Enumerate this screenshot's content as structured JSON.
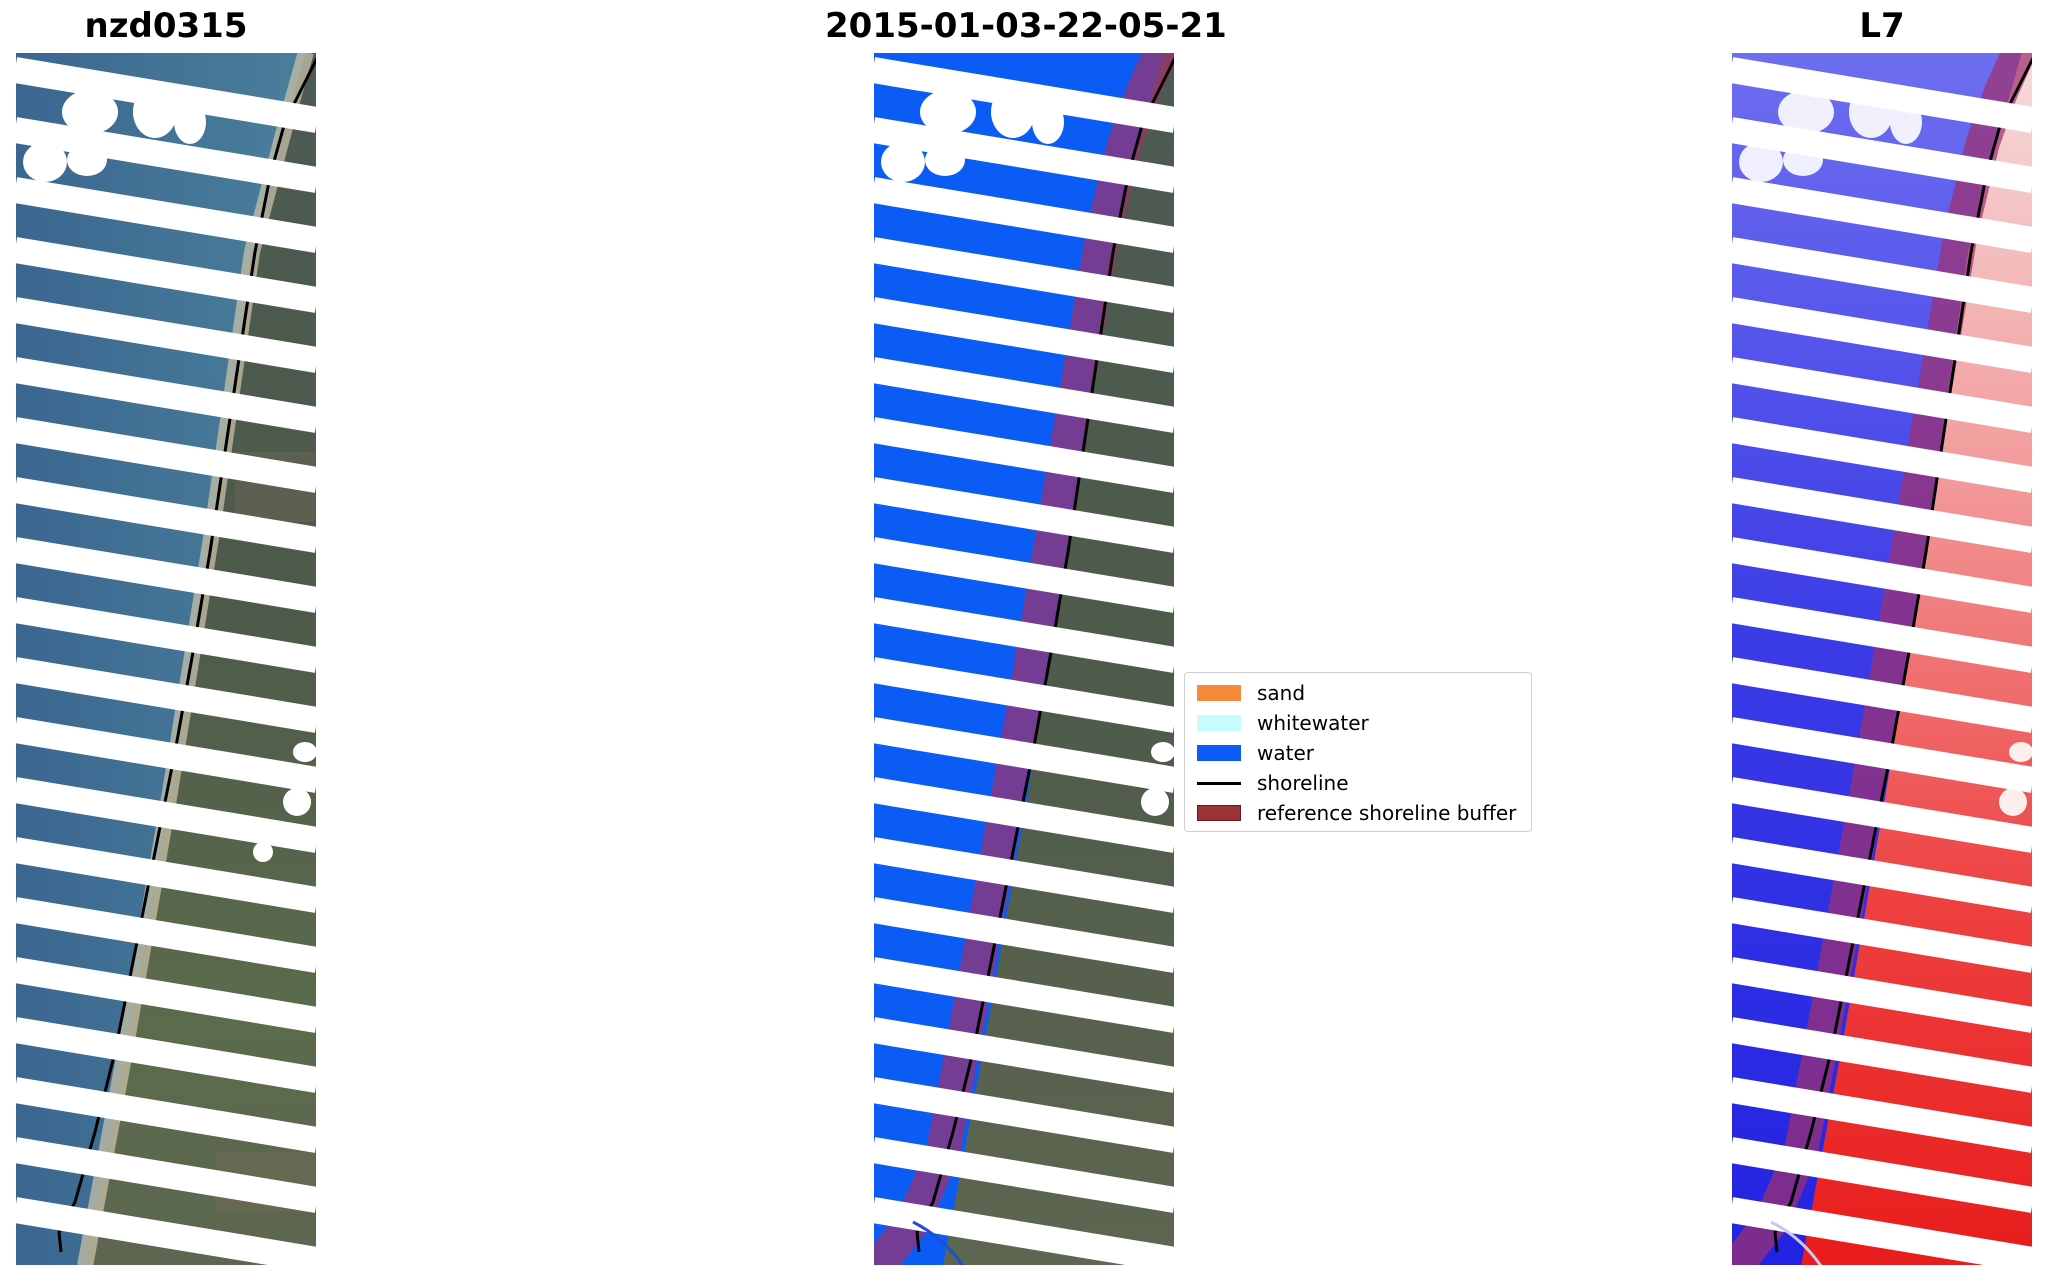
{
  "panels": [
    {
      "title": "nzd0315"
    },
    {
      "title": "2015-01-03-22-05-21"
    },
    {
      "title": "L7"
    }
  ],
  "legend": {
    "items": [
      {
        "label": "sand",
        "kind": "patch",
        "color": "#f58b3a"
      },
      {
        "label": "whitewater",
        "kind": "patch",
        "color": "#c8fbfb"
      },
      {
        "label": "water",
        "kind": "patch",
        "color": "#0a5cf5"
      },
      {
        "label": "shoreline",
        "kind": "line",
        "color": "#000000"
      },
      {
        "label": "reference shoreline buffer",
        "kind": "patch",
        "color": "#9a3236"
      }
    ]
  },
  "colors": {
    "rgb_water": "#3f6d93",
    "rgb_land": "#4a5946",
    "rgb_sand": "#bdb7a2",
    "classified_water": "#0a5cf5",
    "buffer": "#a0306e",
    "mndwi_negative": "#e52020",
    "mndwi_positive": "#2a2ae5",
    "scan_gap": "#ffffff"
  }
}
